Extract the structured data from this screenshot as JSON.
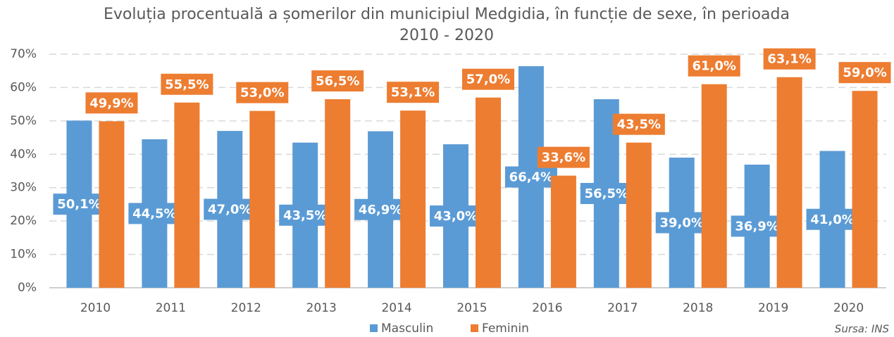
{
  "chart_data": {
    "type": "bar",
    "title": "Evoluția procentuală a șomerilor din municipiul Medgidia, în funcție de sexe, în perioada 2010 - 2020",
    "categories": [
      "2010",
      "2011",
      "2012",
      "2013",
      "2014",
      "2015",
      "2016",
      "2017",
      "2018",
      "2019",
      "2020"
    ],
    "series": [
      {
        "name": "Masculin",
        "color": "#5b9bd5",
        "values": [
          50.1,
          44.5,
          47.0,
          43.5,
          46.9,
          43.0,
          66.4,
          56.5,
          39.0,
          36.9,
          41.0
        ],
        "value_labels": [
          "50,1%",
          "44,5%",
          "47,0%",
          "43,5%",
          "46,9%",
          "43,0%",
          "66,4%",
          "56,5%",
          "39,0%",
          "36,9%",
          "41,0%"
        ]
      },
      {
        "name": "Feminin",
        "color": "#ed7d31",
        "values": [
          49.9,
          55.5,
          53.0,
          56.5,
          53.1,
          57.0,
          33.6,
          43.5,
          61.0,
          63.1,
          59.0
        ],
        "value_labels": [
          "49,9%",
          "55,5%",
          "53,0%",
          "56,5%",
          "53,1%",
          "57,0%",
          "33,6%",
          "43,5%",
          "61,0%",
          "63,1%",
          "59,0%"
        ]
      }
    ],
    "ylim": [
      0,
      70
    ],
    "yticks": [
      {
        "value": 0,
        "label": "0%"
      },
      {
        "value": 10,
        "label": "10%"
      },
      {
        "value": 20,
        "label": "20%"
      },
      {
        "value": 30,
        "label": "30%"
      },
      {
        "value": 40,
        "label": "40%"
      },
      {
        "value": 50,
        "label": "50%"
      },
      {
        "value": 60,
        "label": "60%"
      },
      {
        "value": 70,
        "label": "70%"
      }
    ],
    "grid": true,
    "source": "Sursa: INS"
  }
}
